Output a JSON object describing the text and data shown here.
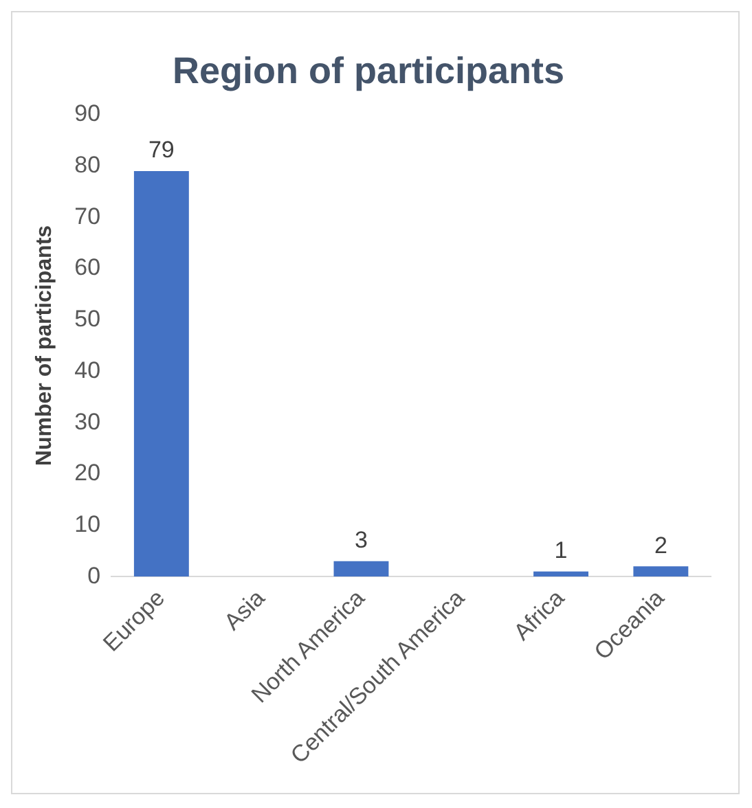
{
  "chart_data": {
    "type": "bar",
    "title": "Region of participants",
    "ylabel": "Number of participants",
    "categories": [
      "Europe",
      "Asia",
      "North America",
      "Central/South America",
      "Africa",
      "Oceania"
    ],
    "values": [
      79,
      0,
      3,
      0,
      1,
      2
    ],
    "value_labels": [
      "79",
      null,
      "3",
      null,
      "1",
      "2"
    ],
    "color": "#4472c4",
    "ylim": [
      0,
      90
    ],
    "yticks": [
      0,
      10,
      20,
      30,
      40,
      50,
      60,
      70,
      80,
      90
    ],
    "grid": false,
    "legend": false
  }
}
